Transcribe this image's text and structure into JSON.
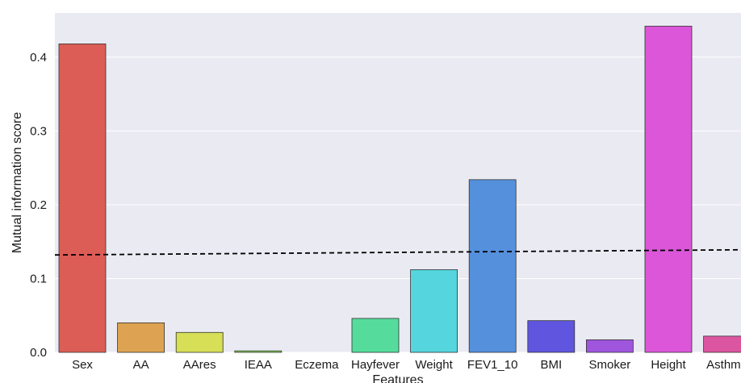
{
  "chart_data": {
    "type": "bar",
    "title": "",
    "xlabel": "Features",
    "ylabel": "Mutual information score",
    "categories": [
      "Sex",
      "AA",
      "AAres",
      "IEAA",
      "Eczema",
      "Hayfever",
      "Weight",
      "FEV1_10",
      "BMI",
      "Smoker",
      "Height",
      "Asthma"
    ],
    "values": [
      0.418,
      0.04,
      0.027,
      0.002,
      0.0,
      0.046,
      0.112,
      0.234,
      0.043,
      0.017,
      0.442,
      0.022
    ],
    "colors": [
      "#dc5d55",
      "#dda352",
      "#d6df55",
      "#83dd56",
      "#56dd6a",
      "#55dc9c",
      "#55d5de",
      "#5590dd",
      "#5f55de",
      "#a055dd",
      "#db56d8",
      "#dc55a0"
    ],
    "yticks": [
      0.0,
      0.1,
      0.2,
      0.3,
      0.4
    ],
    "ytick_labels": [
      "0.0",
      "0.1",
      "0.2",
      "0.3",
      "0.4"
    ],
    "ylim": [
      0,
      0.46
    ],
    "grid": true,
    "background": "#eaeaf2",
    "reference_line": {
      "style": "dashed",
      "color": "#000000",
      "y_start": 0.132,
      "y_end": 0.139
    }
  }
}
